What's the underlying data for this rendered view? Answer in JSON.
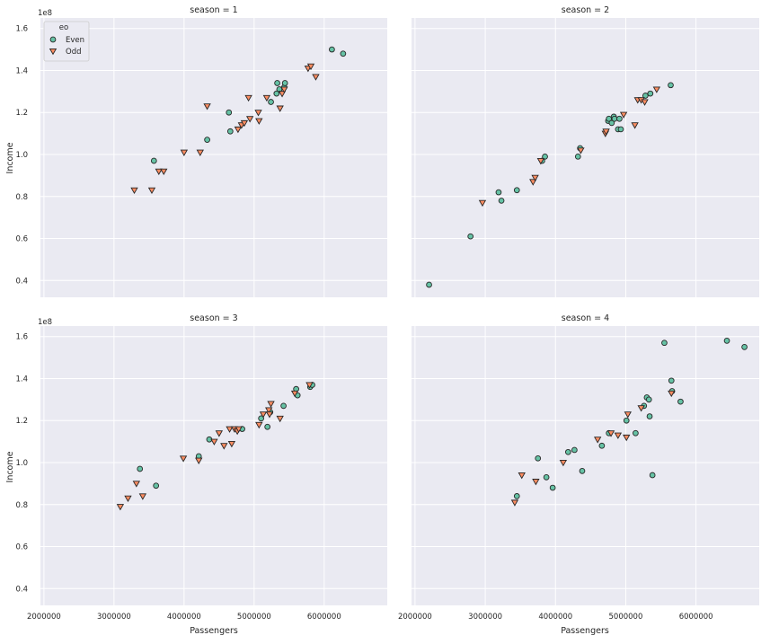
{
  "figure": {
    "x_label": "Passengers",
    "y_label": "Income",
    "y_offset_label": "1e8",
    "legend_title": "eo",
    "colors": {
      "even": "#66c2a5",
      "odd": "#fc8d62",
      "panel_bg": "#eaeaf2",
      "grid": "#ffffff",
      "edge": "#262626"
    },
    "x_ticks": [
      "2000000",
      "3000000",
      "4000000",
      "5000000",
      "6000000"
    ],
    "y_ticks": [
      "0.4",
      "0.6",
      "0.8",
      "1.0",
      "1.2",
      "1.4",
      "1.6"
    ]
  },
  "chart_data": {
    "type": "scatter",
    "facet": "season",
    "xlim": [
      1950000,
      6900000
    ],
    "ylim": [
      0.32,
      1.65
    ],
    "y_scale_note": "values in units of 1e8",
    "x_tick_values": [
      2000000,
      3000000,
      4000000,
      5000000,
      6000000
    ],
    "y_tick_values": [
      0.4,
      0.6,
      0.8,
      1.0,
      1.2,
      1.4,
      1.6
    ],
    "legend": {
      "title": "eo",
      "entries": [
        "Even",
        "Odd"
      ],
      "placement": "top-left of first panel"
    },
    "grid": true,
    "panels": [
      {
        "title": "season = 1",
        "series": [
          {
            "name": "Even",
            "marker": "circle",
            "x": [
              3570000,
              4330000,
              4640000,
              4660000,
              5240000,
              5320000,
              5330000,
              5360000,
              5430000,
              5440000,
              6110000,
              6270000
            ],
            "y": [
              0.97,
              1.07,
              1.2,
              1.11,
              1.25,
              1.29,
              1.34,
              1.31,
              1.32,
              1.34,
              1.5,
              1.48
            ]
          },
          {
            "name": "Odd",
            "marker": "triangle-down",
            "x": [
              3290000,
              3540000,
              3640000,
              3710000,
              4000000,
              4230000,
              4330000,
              4770000,
              4820000,
              4860000,
              4920000,
              4940000,
              5060000,
              5070000,
              5180000,
              5370000,
              5400000,
              5430000,
              5770000,
              5810000,
              5880000
            ],
            "y": [
              0.83,
              0.83,
              0.92,
              0.92,
              1.01,
              1.01,
              1.23,
              1.12,
              1.14,
              1.15,
              1.27,
              1.17,
              1.2,
              1.16,
              1.27,
              1.22,
              1.29,
              1.31,
              1.41,
              1.42,
              1.37
            ]
          }
        ]
      },
      {
        "title": "season = 2",
        "series": [
          {
            "name": "Even",
            "marker": "circle",
            "x": [
              2200000,
              2790000,
              3190000,
              3230000,
              3450000,
              3810000,
              3850000,
              4320000,
              4350000,
              4750000,
              4760000,
              4800000,
              4830000,
              4840000,
              4890000,
              4910000,
              4930000,
              5280000,
              5350000,
              5640000
            ],
            "y": [
              0.38,
              0.61,
              0.82,
              0.78,
              0.83,
              0.97,
              0.99,
              0.99,
              1.03,
              1.16,
              1.17,
              1.15,
              1.18,
              1.17,
              1.12,
              1.17,
              1.12,
              1.28,
              1.29,
              1.33
            ]
          },
          {
            "name": "Odd",
            "marker": "triangle-down",
            "x": [
              2960000,
              3680000,
              3710000,
              3790000,
              4360000,
              4710000,
              4720000,
              4970000,
              5130000,
              5170000,
              5220000,
              5270000,
              5440000
            ],
            "y": [
              0.77,
              0.87,
              0.89,
              0.97,
              1.02,
              1.1,
              1.11,
              1.19,
              1.14,
              1.26,
              1.26,
              1.25,
              1.31
            ]
          }
        ]
      },
      {
        "title": "season = 3",
        "series": [
          {
            "name": "Even",
            "marker": "circle",
            "x": [
              3370000,
              3600000,
              4210000,
              4360000,
              4830000,
              5100000,
              5190000,
              5230000,
              5420000,
              5600000,
              5620000,
              5800000,
              5830000
            ],
            "y": [
              0.97,
              0.89,
              1.03,
              1.11,
              1.16,
              1.21,
              1.17,
              1.24,
              1.27,
              1.35,
              1.32,
              1.36,
              1.37
            ]
          },
          {
            "name": "Odd",
            "marker": "triangle-down",
            "x": [
              3090000,
              3200000,
              3320000,
              3410000,
              3990000,
              4210000,
              4430000,
              4500000,
              4570000,
              4650000,
              4680000,
              4720000,
              4760000,
              4780000,
              5070000,
              5130000,
              5210000,
              5220000,
              5240000,
              5370000,
              5580000,
              5790000
            ],
            "y": [
              0.79,
              0.83,
              0.9,
              0.84,
              1.02,
              1.01,
              1.1,
              1.14,
              1.08,
              1.16,
              1.09,
              1.16,
              1.15,
              1.16,
              1.18,
              1.23,
              1.25,
              1.23,
              1.28,
              1.21,
              1.33,
              1.37
            ]
          }
        ]
      },
      {
        "title": "season = 4",
        "series": [
          {
            "name": "Even",
            "marker": "circle",
            "x": [
              3450000,
              3750000,
              3870000,
              3960000,
              4180000,
              4270000,
              4380000,
              4660000,
              4760000,
              5010000,
              5140000,
              5260000,
              5300000,
              5330000,
              5340000,
              5380000,
              5550000,
              5650000,
              5660000,
              5780000,
              6440000,
              6690000
            ],
            "y": [
              0.84,
              1.02,
              0.93,
              0.88,
              1.05,
              1.06,
              0.96,
              1.08,
              1.14,
              1.2,
              1.14,
              1.27,
              1.31,
              1.3,
              1.22,
              0.94,
              1.57,
              1.39,
              1.34,
              1.29,
              1.58,
              1.55
            ]
          },
          {
            "name": "Odd",
            "marker": "triangle-down",
            "x": [
              3420000,
              3520000,
              3720000,
              4110000,
              4600000,
              4790000,
              4890000,
              5010000,
              5030000,
              5220000,
              5650000
            ],
            "y": [
              0.81,
              0.94,
              0.91,
              1.0,
              1.11,
              1.14,
              1.13,
              1.12,
              1.23,
              1.26,
              1.33
            ]
          }
        ]
      }
    ]
  }
}
